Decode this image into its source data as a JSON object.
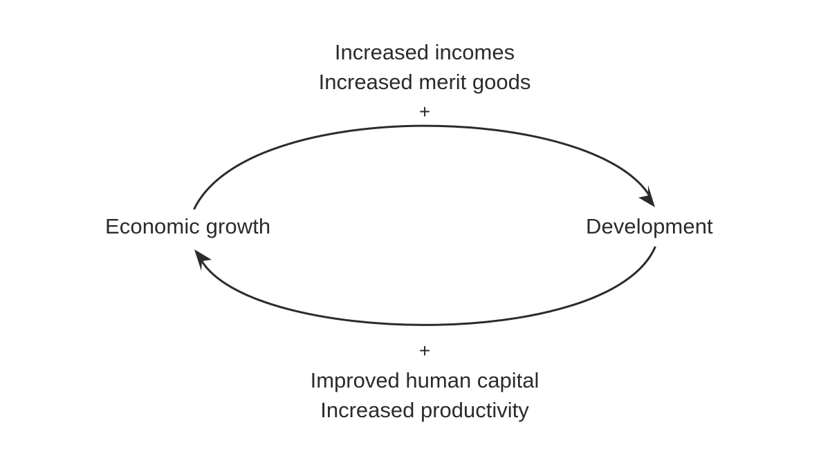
{
  "nodes": {
    "left": "Economic growth",
    "right": "Development"
  },
  "top_link": {
    "lines": [
      "Increased incomes",
      "Increased merit goods"
    ],
    "polarity": "+"
  },
  "bottom_link": {
    "lines": [
      "Improved human capital",
      "Increased productivity"
    ],
    "polarity": "+"
  },
  "colors": {
    "ink": "#2b2b2b",
    "background": "#ffffff"
  }
}
